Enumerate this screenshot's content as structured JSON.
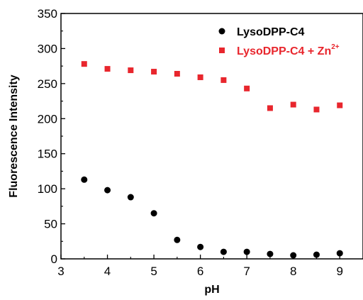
{
  "chart_data": {
    "type": "scatter",
    "xlabel": "pH",
    "ylabel": "Fluorescence Intensity",
    "xlim": [
      3,
      9.5
    ],
    "ylim": [
      0,
      350
    ],
    "xticks": [
      3,
      4,
      5,
      6,
      7,
      8,
      9
    ],
    "yticks": [
      0,
      50,
      100,
      150,
      200,
      250,
      300,
      350
    ],
    "grid": false,
    "legend_position": "top-right",
    "series": [
      {
        "name": "LysoDPP-C4",
        "marker": "circle",
        "color": "#000000",
        "x": [
          3.5,
          4.0,
          4.5,
          5.0,
          5.5,
          6.0,
          6.5,
          7.0,
          7.5,
          8.0,
          8.5,
          9.0
        ],
        "y": [
          113,
          98,
          88,
          65,
          27,
          17,
          10,
          10,
          7,
          5,
          6,
          8
        ]
      },
      {
        "name": "LysoDPP-C4 + Zn",
        "name_superscript": "2+",
        "marker": "square",
        "color": "#e8262d",
        "x": [
          3.5,
          4.0,
          4.5,
          5.0,
          5.5,
          6.0,
          6.5,
          7.0,
          7.5,
          8.0,
          8.5,
          9.0
        ],
        "y": [
          278,
          271,
          269,
          267,
          264,
          259,
          255,
          243,
          215,
          220,
          213,
          219
        ]
      }
    ]
  }
}
